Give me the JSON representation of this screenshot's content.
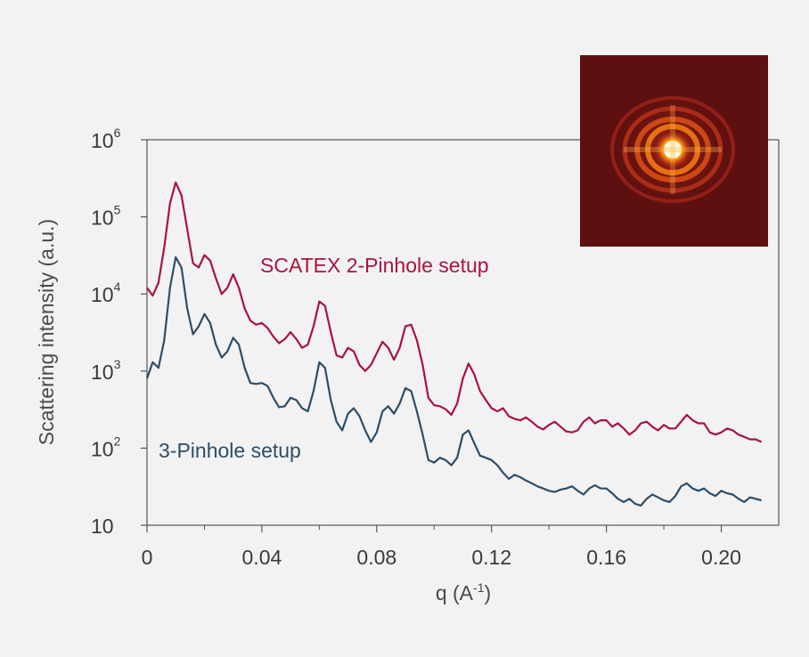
{
  "chart_data": {
    "type": "line",
    "xlabel": {
      "base": "q (A",
      "sup": "-1",
      "tail": ")"
    },
    "ylabel": "Scattering intensity (a.u.)",
    "y_scale": "log",
    "xlim": [
      0,
      0.22
    ],
    "ylim": [
      10,
      1000000
    ],
    "grid": false,
    "x_ticks": [
      {
        "value": 0,
        "label": "0"
      },
      {
        "value": 0.04,
        "label": "0.04"
      },
      {
        "value": 0.08,
        "label": "0.08"
      },
      {
        "value": 0.12,
        "label": "0.12"
      },
      {
        "value": 0.16,
        "label": "0.16"
      },
      {
        "value": 0.2,
        "label": "0.20"
      }
    ],
    "x_minor_ticks": [
      0.02,
      0.06,
      0.1,
      0.14,
      0.18
    ],
    "y_ticks": [
      {
        "value": 10,
        "base": "10",
        "sup": ""
      },
      {
        "value": 100,
        "base": "10",
        "sup": "2"
      },
      {
        "value": 1000,
        "base": "10",
        "sup": "3"
      },
      {
        "value": 10000,
        "base": "10",
        "sup": "4"
      },
      {
        "value": 100000,
        "base": "10",
        "sup": "5"
      },
      {
        "value": 1000000,
        "base": "10",
        "sup": "6"
      }
    ],
    "series": [
      {
        "name": "SCATEX 2-Pinhole setup",
        "color": "#a8143e",
        "x": [
          0.0,
          0.002,
          0.004,
          0.006,
          0.008,
          0.01,
          0.012,
          0.014,
          0.016,
          0.018,
          0.02,
          0.022,
          0.024,
          0.026,
          0.028,
          0.03,
          0.032,
          0.034,
          0.036,
          0.038,
          0.04,
          0.042,
          0.044,
          0.046,
          0.048,
          0.05,
          0.052,
          0.054,
          0.056,
          0.058,
          0.06,
          0.062,
          0.064,
          0.066,
          0.068,
          0.07,
          0.072,
          0.074,
          0.076,
          0.078,
          0.08,
          0.082,
          0.084,
          0.086,
          0.088,
          0.09,
          0.092,
          0.094,
          0.096,
          0.098,
          0.1,
          0.102,
          0.104,
          0.106,
          0.108,
          0.11,
          0.112,
          0.114,
          0.116,
          0.118,
          0.12,
          0.122,
          0.124,
          0.126,
          0.128,
          0.13,
          0.132,
          0.134,
          0.136,
          0.138,
          0.14,
          0.142,
          0.144,
          0.146,
          0.148,
          0.15,
          0.152,
          0.154,
          0.156,
          0.158,
          0.16,
          0.162,
          0.164,
          0.166,
          0.168,
          0.17,
          0.172,
          0.174,
          0.176,
          0.178,
          0.18,
          0.182,
          0.184,
          0.186,
          0.188,
          0.19,
          0.192,
          0.194,
          0.196,
          0.198,
          0.2,
          0.202,
          0.204,
          0.206,
          0.208,
          0.21,
          0.212,
          0.214
        ],
        "y": [
          12000,
          9500,
          14000,
          40000,
          150000,
          280000,
          190000,
          70000,
          25000,
          22000,
          32000,
          27000,
          16000,
          10000,
          12000,
          18000,
          12000,
          6500,
          4500,
          4000,
          4200,
          3600,
          2800,
          2300,
          2600,
          3200,
          2600,
          2000,
          2200,
          3800,
          8000,
          7000,
          3200,
          1600,
          1500,
          2000,
          1800,
          1200,
          1000,
          1200,
          1700,
          2400,
          2000,
          1400,
          2000,
          3800,
          4000,
          2500,
          1200,
          450,
          360,
          350,
          320,
          270,
          380,
          800,
          1250,
          900,
          550,
          420,
          330,
          300,
          330,
          260,
          240,
          230,
          250,
          220,
          190,
          175,
          200,
          220,
          190,
          165,
          160,
          170,
          220,
          250,
          210,
          230,
          230,
          190,
          210,
          180,
          150,
          170,
          210,
          220,
          190,
          170,
          200,
          180,
          180,
          220,
          270,
          230,
          210,
          210,
          160,
          150,
          160,
          180,
          170,
          150,
          140,
          130,
          130,
          120
        ]
      },
      {
        "name": "3-Pinhole setup",
        "color": "#2e4d66",
        "x": [
          0.0,
          0.002,
          0.004,
          0.006,
          0.008,
          0.01,
          0.012,
          0.014,
          0.016,
          0.018,
          0.02,
          0.022,
          0.024,
          0.026,
          0.028,
          0.03,
          0.032,
          0.034,
          0.036,
          0.038,
          0.04,
          0.042,
          0.044,
          0.046,
          0.048,
          0.05,
          0.052,
          0.054,
          0.056,
          0.058,
          0.06,
          0.062,
          0.064,
          0.066,
          0.068,
          0.07,
          0.072,
          0.074,
          0.076,
          0.078,
          0.08,
          0.082,
          0.084,
          0.086,
          0.088,
          0.09,
          0.092,
          0.094,
          0.096,
          0.098,
          0.1,
          0.102,
          0.104,
          0.106,
          0.108,
          0.11,
          0.112,
          0.114,
          0.116,
          0.118,
          0.12,
          0.122,
          0.124,
          0.126,
          0.128,
          0.13,
          0.132,
          0.134,
          0.136,
          0.138,
          0.14,
          0.142,
          0.144,
          0.146,
          0.148,
          0.15,
          0.152,
          0.154,
          0.156,
          0.158,
          0.16,
          0.162,
          0.164,
          0.166,
          0.168,
          0.17,
          0.172,
          0.174,
          0.176,
          0.178,
          0.18,
          0.182,
          0.184,
          0.186,
          0.188,
          0.19,
          0.192,
          0.194,
          0.196,
          0.198,
          0.2,
          0.202,
          0.204,
          0.206,
          0.208,
          0.21,
          0.212,
          0.214
        ],
        "y": [
          800,
          1300,
          1100,
          2500,
          12000,
          30000,
          22000,
          6500,
          3000,
          3800,
          5500,
          4200,
          2200,
          1500,
          1800,
          2700,
          2200,
          1100,
          700,
          680,
          700,
          640,
          450,
          340,
          350,
          450,
          420,
          330,
          300,
          550,
          1300,
          1100,
          420,
          220,
          170,
          280,
          330,
          260,
          170,
          120,
          160,
          300,
          350,
          280,
          380,
          600,
          550,
          300,
          150,
          70,
          65,
          75,
          70,
          60,
          75,
          150,
          170,
          115,
          80,
          75,
          70,
          60,
          48,
          40,
          45,
          42,
          38,
          35,
          32,
          30,
          28,
          27,
          29,
          30,
          32,
          28,
          25,
          30,
          33,
          30,
          30,
          26,
          22,
          20,
          22,
          19,
          18,
          22,
          25,
          23,
          21,
          20,
          24,
          32,
          35,
          30,
          28,
          30,
          26,
          24,
          28,
          26,
          25,
          22,
          20,
          23,
          22,
          21
        ]
      }
    ],
    "annotations": [
      {
        "text": "SCATEX 2-Pinhole setup",
        "color": "#a8143e"
      },
      {
        "text": "3-Pinhole setup",
        "color": "#2e4d66"
      }
    ]
  },
  "inset_image": {
    "description_icon": "scattering-pattern",
    "colors": [
      "#5e1010",
      "#a32015",
      "#e86f0c",
      "#fff6c8"
    ]
  }
}
